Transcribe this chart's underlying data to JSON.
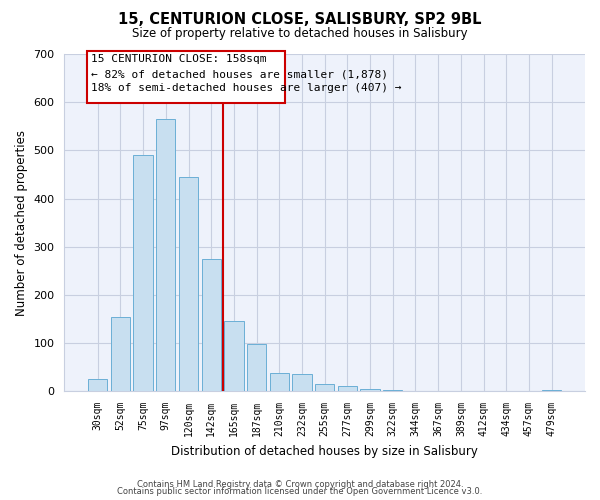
{
  "title": "15, CENTURION CLOSE, SALISBURY, SP2 9BL",
  "subtitle": "Size of property relative to detached houses in Salisbury",
  "xlabel": "Distribution of detached houses by size in Salisbury",
  "ylabel": "Number of detached properties",
  "bar_labels": [
    "30sqm",
    "52sqm",
    "75sqm",
    "97sqm",
    "120sqm",
    "142sqm",
    "165sqm",
    "187sqm",
    "210sqm",
    "232sqm",
    "255sqm",
    "277sqm",
    "299sqm",
    "322sqm",
    "344sqm",
    "367sqm",
    "389sqm",
    "412sqm",
    "434sqm",
    "457sqm",
    "479sqm"
  ],
  "bar_values": [
    25,
    155,
    490,
    565,
    445,
    275,
    145,
    97,
    37,
    35,
    14,
    10,
    5,
    2,
    1,
    1,
    0,
    0,
    0,
    0,
    3
  ],
  "bar_color": "#c8dff0",
  "bar_edge_color": "#6bafd6",
  "vline_x": 5.5,
  "vline_color": "#cc0000",
  "ylim": [
    0,
    700
  ],
  "yticks": [
    0,
    100,
    200,
    300,
    400,
    500,
    600,
    700
  ],
  "annotation_title": "15 CENTURION CLOSE: 158sqm",
  "annotation_line1": "← 82% of detached houses are smaller (1,878)",
  "annotation_line2": "18% of semi-detached houses are larger (407) →",
  "annotation_box_color": "#ffffff",
  "annotation_box_edge": "#cc0000",
  "plot_bg_color": "#eef2fb",
  "grid_color": "#c8cfe0",
  "footer_line1": "Contains HM Land Registry data © Crown copyright and database right 2024.",
  "footer_line2": "Contains public sector information licensed under the Open Government Licence v3.0.",
  "background_color": "#ffffff"
}
